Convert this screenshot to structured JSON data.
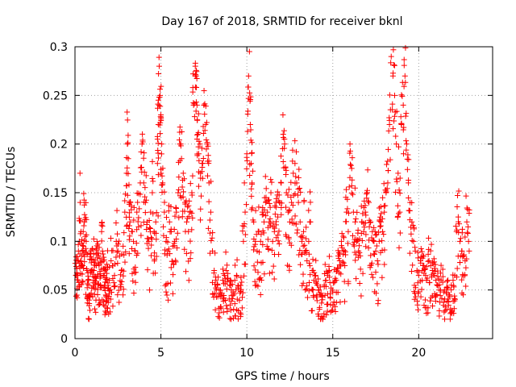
{
  "chart_data": {
    "type": "scatter",
    "title": "Day 167 of 2018, SRMTID for receiver bknl",
    "xlabel": "GPS time / hours",
    "ylabel": "SRMTID / TECUs",
    "xlim": [
      0,
      24.3
    ],
    "ylim": [
      0,
      0.3
    ],
    "xticks": [
      0,
      5,
      10,
      15,
      20
    ],
    "xtick_labels": [
      "0",
      "5",
      "10",
      "15",
      "20"
    ],
    "yticks": [
      0,
      0.05,
      0.1,
      0.15,
      0.2,
      0.25,
      0.3
    ],
    "ytick_labels": [
      "0",
      "0.05",
      "0.1",
      "0.15",
      "0.2",
      "0.25",
      "0.3"
    ],
    "grid": true,
    "marker": "plus",
    "series": [
      {
        "name": "SRMTID",
        "color": "#ff0000",
        "x": [
          0.05,
          0.1,
          0.15,
          0.2,
          0.25,
          0.3,
          0.35,
          0.4,
          0.45,
          0.5,
          0.55,
          0.6,
          0.65,
          0.7,
          0.75,
          0.8,
          0.85,
          0.9,
          0.95,
          1.0,
          1.05,
          1.1,
          1.15,
          1.2,
          1.25,
          1.3,
          1.35,
          1.4,
          1.45,
          1.5,
          1.55,
          1.6,
          1.65,
          1.7,
          1.75,
          1.8,
          1.85,
          1.9,
          1.95,
          2.0,
          2.1,
          2.2,
          2.3,
          2.4,
          2.5,
          2.6,
          2.7,
          2.8,
          2.9,
          3.0,
          3.05,
          3.1,
          3.15,
          3.2,
          3.3,
          3.4,
          3.5,
          3.6,
          3.7,
          3.8,
          3.9,
          4.0,
          4.1,
          4.2,
          4.3,
          4.4,
          4.5,
          4.6,
          4.7,
          4.8,
          4.85,
          4.9,
          4.95,
          5.0,
          5.05,
          5.1,
          5.2,
          5.3,
          5.4,
          5.5,
          5.6,
          5.7,
          5.8,
          5.9,
          6.0,
          6.1,
          6.2,
          6.3,
          6.4,
          6.5,
          6.6,
          6.7,
          6.8,
          6.9,
          7.0,
          7.05,
          7.1,
          7.15,
          7.2,
          7.3,
          7.4,
          7.5,
          7.6,
          7.7,
          7.8,
          7.9,
          8.0,
          8.1,
          8.2,
          8.3,
          8.4,
          8.5,
          8.6,
          8.7,
          8.8,
          8.9,
          9.0,
          9.1,
          9.2,
          9.3,
          9.4,
          9.5,
          9.6,
          9.7,
          9.8,
          9.9,
          10.0,
          10.1,
          10.15,
          10.2,
          10.25,
          10.3,
          10.4,
          10.5,
          10.6,
          10.7,
          10.8,
          10.9,
          11.0,
          11.1,
          11.2,
          11.3,
          11.4,
          11.5,
          11.6,
          11.7,
          11.8,
          11.9,
          12.0,
          12.1,
          12.2,
          12.3,
          12.4,
          12.5,
          12.6,
          12.7,
          12.8,
          12.9,
          13.0,
          13.1,
          13.2,
          13.3,
          13.4,
          13.5,
          13.6,
          13.7,
          13.8,
          13.9,
          14.0,
          14.1,
          14.2,
          14.3,
          14.4,
          14.5,
          14.6,
          14.7,
          14.8,
          14.9,
          15.0,
          15.1,
          15.2,
          15.3,
          15.4,
          15.5,
          15.6,
          15.7,
          15.8,
          15.9,
          16.0,
          16.1,
          16.2,
          16.3,
          16.4,
          16.5,
          16.6,
          16.7,
          16.8,
          16.9,
          17.0,
          17.1,
          17.2,
          17.3,
          17.4,
          17.5,
          17.6,
          17.7,
          17.8,
          17.9,
          18.0,
          18.1,
          18.2,
          18.3,
          18.4,
          18.5,
          18.6,
          18.7,
          18.8,
          18.9,
          19.0,
          19.1,
          19.2,
          19.3,
          19.4,
          19.5,
          19.6,
          19.7,
          19.8,
          19.9,
          20.0,
          20.1,
          20.2,
          20.3,
          20.4,
          20.5,
          20.6,
          20.7,
          20.8,
          20.9,
          21.0,
          21.1,
          21.2,
          21.3,
          21.4,
          21.5,
          21.6,
          21.7,
          21.8,
          21.9,
          22.0,
          22.1,
          22.2,
          22.3,
          22.4,
          22.5,
          22.6,
          22.7,
          22.8,
          22.9
        ],
        "y": [
          0.065,
          0.072,
          0.08,
          0.09,
          0.1,
          0.14,
          0.11,
          0.085,
          0.075,
          0.095,
          0.12,
          0.105,
          0.1,
          0.07,
          0.06,
          0.055,
          0.045,
          0.068,
          0.078,
          0.092,
          0.081,
          0.07,
          0.063,
          0.059,
          0.075,
          0.083,
          0.088,
          0.076,
          0.069,
          0.064,
          0.11,
          0.09,
          0.072,
          0.065,
          0.058,
          0.061,
          0.067,
          0.073,
          0.052,
          0.06,
          0.08,
          0.075,
          0.065,
          0.1,
          0.09,
          0.085,
          0.07,
          0.095,
          0.13,
          0.17,
          0.2,
          0.185,
          0.14,
          0.12,
          0.11,
          0.1,
          0.09,
          0.13,
          0.115,
          0.16,
          0.2,
          0.16,
          0.14,
          0.12,
          0.1,
          0.13,
          0.15,
          0.11,
          0.12,
          0.18,
          0.22,
          0.28,
          0.25,
          0.23,
          0.2,
          0.16,
          0.13,
          0.1,
          0.09,
          0.12,
          0.11,
          0.095,
          0.1,
          0.13,
          0.15,
          0.2,
          0.185,
          0.17,
          0.14,
          0.12,
          0.11,
          0.13,
          0.15,
          0.24,
          0.28,
          0.27,
          0.24,
          0.21,
          0.19,
          0.17,
          0.18,
          0.24,
          0.22,
          0.2,
          0.16,
          0.13,
          0.09,
          0.07,
          0.06,
          0.055,
          0.05,
          0.045,
          0.06,
          0.065,
          0.07,
          0.062,
          0.055,
          0.05,
          0.048,
          0.06,
          0.065,
          0.052,
          0.047,
          0.058,
          0.1,
          0.13,
          0.19,
          0.27,
          0.295,
          0.22,
          0.18,
          0.16,
          0.12,
          0.1,
          0.09,
          0.11,
          0.1,
          0.13,
          0.12,
          0.14,
          0.13,
          0.12,
          0.15,
          0.1,
          0.11,
          0.135,
          0.125,
          0.14,
          0.16,
          0.23,
          0.2,
          0.15,
          0.13,
          0.12,
          0.14,
          0.17,
          0.18,
          0.16,
          0.14,
          0.12,
          0.1,
          0.11,
          0.09,
          0.08,
          0.1,
          0.12,
          0.07,
          0.06,
          0.065,
          0.055,
          0.05,
          0.045,
          0.04,
          0.055,
          0.06,
          0.065,
          0.07,
          0.052,
          0.048,
          0.058,
          0.06,
          0.072,
          0.08,
          0.1,
          0.09,
          0.075,
          0.13,
          0.11,
          0.2,
          0.175,
          0.13,
          0.12,
          0.1,
          0.09,
          0.085,
          0.12,
          0.11,
          0.13,
          0.15,
          0.14,
          0.12,
          0.11,
          0.1,
          0.09,
          0.08,
          0.1,
          0.12,
          0.11,
          0.13,
          0.15,
          0.16,
          0.22,
          0.29,
          0.27,
          0.25,
          0.2,
          0.17,
          0.13,
          0.22,
          0.24,
          0.27,
          0.2,
          0.16,
          0.14,
          0.12,
          0.1,
          0.09,
          0.07,
          0.065,
          0.08,
          0.07,
          0.075,
          0.065,
          0.062,
          0.08,
          0.075,
          0.07,
          0.065,
          0.06,
          0.055,
          0.05,
          0.06,
          0.058,
          0.05,
          0.048,
          0.052,
          0.045,
          0.055,
          0.06,
          0.065,
          0.11,
          0.125,
          0.1,
          0.09,
          0.085,
          0.08,
          0.12,
          0.1
        ]
      }
    ]
  }
}
